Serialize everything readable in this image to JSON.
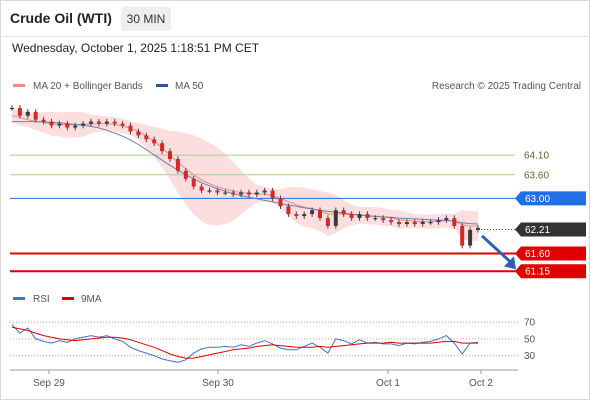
{
  "header": {
    "title": "Crude Oil (WTI)",
    "interval": "30 MIN",
    "timestamp": "Wednesday, October 1, 2025 1:18:51 PM CET"
  },
  "legend": {
    "ma20_label": "MA 20 + Bollinger Bands",
    "ma50_label": "MA 50",
    "ma20_color": "#f28b82",
    "ma50_color": "#2f5597",
    "credit": "Research © 2025 Trading Central"
  },
  "rsi_legend": {
    "rsi_label": "RSI",
    "ma_label": "9MA",
    "rsi_color": "#4472c4",
    "ma_color": "#e00000"
  },
  "chart_data": [
    {
      "type": "line",
      "title": "",
      "ylim": [
        60.8,
        65.5
      ],
      "x_tick_labels": [
        "Sep 29",
        "Sep 30",
        "Oct 1",
        "Oct 2"
      ],
      "levels": [
        {
          "value": 64.1,
          "label": "64.10",
          "kind": "resistance",
          "color": "#a6d08f"
        },
        {
          "value": 63.6,
          "label": "63.60",
          "kind": "resistance",
          "color": "#a6d08f"
        },
        {
          "value": 63.0,
          "label": "63.00",
          "kind": "pivot",
          "color": "#1f6fe5"
        },
        {
          "value": 62.21,
          "label": "62.21",
          "kind": "last-price",
          "color": "#333333"
        },
        {
          "value": 61.6,
          "label": "61.60",
          "kind": "support",
          "color": "#e00000"
        },
        {
          "value": 61.15,
          "label": "61.15",
          "kind": "support",
          "color": "#e00000"
        }
      ],
      "series": [
        {
          "name": "Price",
          "values": [
            65.3,
            65.1,
            65.2,
            65.0,
            64.95,
            64.85,
            64.9,
            64.8,
            64.85,
            64.9,
            64.95,
            64.9,
            64.95,
            64.9,
            64.85,
            64.7,
            64.6,
            64.5,
            64.4,
            64.2,
            64.0,
            63.7,
            63.5,
            63.3,
            63.2,
            63.2,
            63.15,
            63.15,
            63.1,
            63.15,
            63.1,
            63.15,
            63.2,
            63.0,
            62.8,
            62.6,
            62.55,
            62.6,
            62.7,
            62.5,
            62.3,
            62.7,
            62.6,
            62.5,
            62.6,
            62.5,
            62.5,
            62.45,
            62.4,
            62.35,
            62.4,
            62.35,
            62.4,
            62.4,
            62.45,
            62.5,
            62.3,
            61.8,
            62.2,
            62.25
          ]
        },
        {
          "name": "MA 50",
          "values": [
            64.95,
            64.95,
            64.95,
            64.95,
            64.94,
            64.93,
            64.92,
            64.9,
            64.88,
            64.86,
            64.83,
            64.79,
            64.73,
            64.66,
            64.58,
            64.48,
            64.37,
            64.24,
            64.1,
            63.97,
            63.84,
            63.72,
            63.6,
            63.5,
            63.4,
            63.32,
            63.25,
            63.18,
            63.12,
            63.07,
            63.03,
            62.99,
            62.95,
            62.91,
            62.87,
            62.83,
            62.8,
            62.76,
            62.73,
            62.7,
            62.67,
            62.65,
            62.63,
            62.6,
            62.58,
            62.56,
            62.54,
            62.53,
            62.52,
            62.5,
            62.49,
            62.48,
            62.47,
            62.46,
            62.45,
            62.44,
            62.42,
            62.38,
            62.36,
            62.35
          ]
        },
        {
          "name": "MA 20",
          "values": [
            65.1,
            65.05,
            65.0,
            64.96,
            64.93,
            64.9,
            64.88,
            64.87,
            64.87,
            64.88,
            64.89,
            64.9,
            64.9,
            64.88,
            64.84,
            64.78,
            64.7,
            64.58,
            64.44,
            64.28,
            64.1,
            63.92,
            63.75,
            63.6,
            63.47,
            63.37,
            63.3,
            63.24,
            63.18,
            63.15,
            63.13,
            63.12,
            63.11,
            63.07,
            63.0,
            62.92,
            62.84,
            62.78,
            62.74,
            62.68,
            62.6,
            62.6,
            62.6,
            62.58,
            62.57,
            62.56,
            62.55,
            62.53,
            62.5,
            62.46,
            62.44,
            62.42,
            62.41,
            62.41,
            62.42,
            62.44,
            62.42,
            62.33,
            62.3,
            62.3
          ]
        }
      ]
    },
    {
      "type": "line",
      "title": "",
      "ylim": [
        20,
        75
      ],
      "y_ticks": [
        30,
        50,
        70
      ],
      "series": [
        {
          "name": "RSI",
          "values": [
            67,
            57,
            63,
            50,
            47,
            45,
            48,
            46,
            50,
            52,
            54,
            52,
            54,
            50,
            47,
            40,
            36,
            33,
            30,
            26,
            24,
            22,
            25,
            33,
            38,
            40,
            40,
            41,
            40,
            43,
            41,
            45,
            48,
            44,
            39,
            37,
            37,
            41,
            45,
            40,
            33,
            50,
            48,
            44,
            49,
            45,
            46,
            44,
            44,
            42,
            45,
            44,
            46,
            47,
            50,
            54,
            45,
            32,
            45,
            46
          ]
        },
        {
          "name": "9MA",
          "values": [
            64,
            62,
            60,
            57,
            54,
            52,
            50,
            49,
            48,
            49,
            50,
            51,
            52,
            52,
            51,
            49,
            46,
            43,
            40,
            36,
            32,
            29,
            27,
            27,
            29,
            31,
            33,
            35,
            37,
            38,
            39,
            41,
            42,
            43,
            42,
            41,
            40,
            40,
            40,
            41,
            40,
            41,
            42,
            43,
            44,
            45,
            45,
            45,
            46,
            45,
            45,
            45,
            45,
            45,
            46,
            47,
            47,
            45,
            45,
            45
          ]
        }
      ]
    }
  ]
}
